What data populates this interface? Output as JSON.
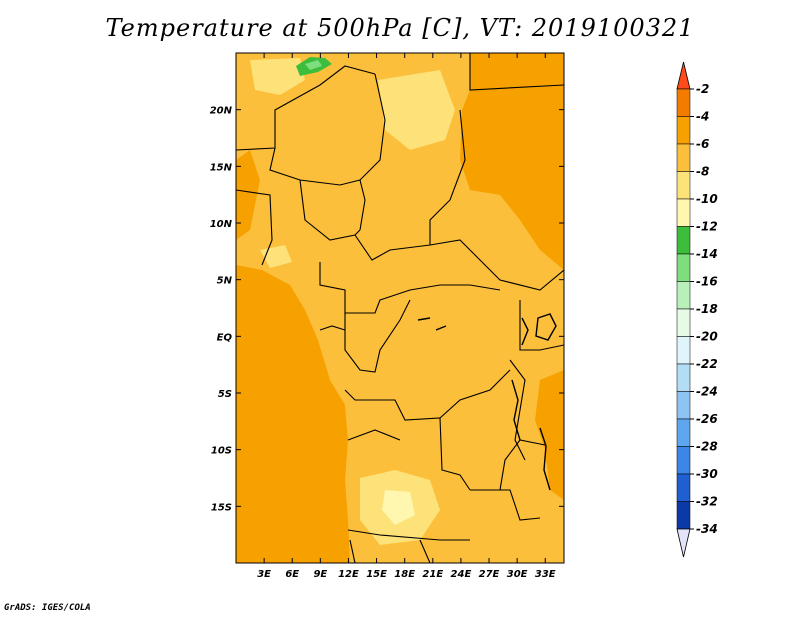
{
  "title": "Temperature at 500hPa [C], VT: 2019100321",
  "credit": "GrADS: IGES/COLA",
  "map": {
    "lon_range": [
      0,
      35
    ],
    "lat_range": [
      -20,
      25
    ],
    "lon_ticks": [
      "3E",
      "6E",
      "9E",
      "12E",
      "15E",
      "18E",
      "21E",
      "24E",
      "27E",
      "30E",
      "33E"
    ],
    "lat_ticks": [
      "20N",
      "15N",
      "10N",
      "5N",
      "EQ",
      "5S",
      "10S",
      "15S"
    ]
  },
  "colorbar": {
    "labels": [
      "-2",
      "-4",
      "-6",
      "-8",
      "-10",
      "-12",
      "-14",
      "-16",
      "-18",
      "-20",
      "-22",
      "-24",
      "-26",
      "-28",
      "-30",
      "-32",
      "-34"
    ],
    "colors": [
      "#ff4a1a",
      "#f47a00",
      "#f7a100",
      "#fbbf3c",
      "#fde27a",
      "#fff6b0",
      "#3cbd3c",
      "#7ede7e",
      "#b9f0b9",
      "#e6fbe6",
      "#dff4fb",
      "#b3dcf7",
      "#8ec4f4",
      "#5ea6ee",
      "#3b86e6",
      "#1f5fd1",
      "#0b3aa8",
      "#0a1a78",
      "#e2e2f8"
    ]
  }
}
